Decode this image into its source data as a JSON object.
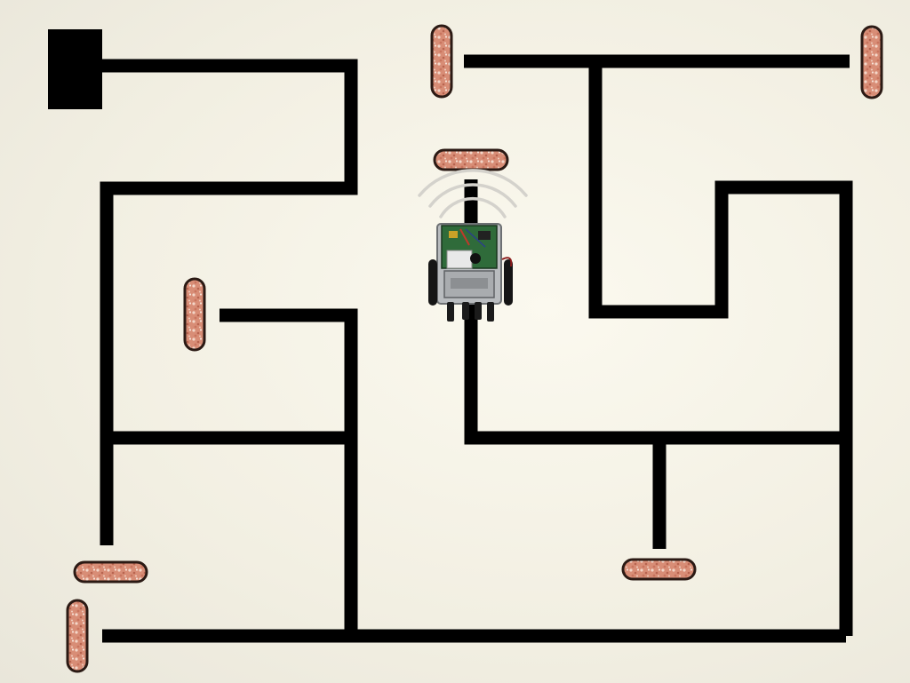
{
  "colors": {
    "background": "#f3f0e3",
    "line": "#000000",
    "brick_fill": "#d9917a",
    "brick_border": "#2b1a14",
    "brick_speckle": "#f1d2c4",
    "robot_board": "#2f6b3a",
    "robot_chassis": "#b9bcbf",
    "signal_arc": "#d4d2cc"
  },
  "icons": {
    "start_marker": "start-block-icon",
    "obstacle": "brick-obstacle-icon",
    "robot": "line-follower-robot-icon",
    "signal": "wireless-signal-icon"
  }
}
